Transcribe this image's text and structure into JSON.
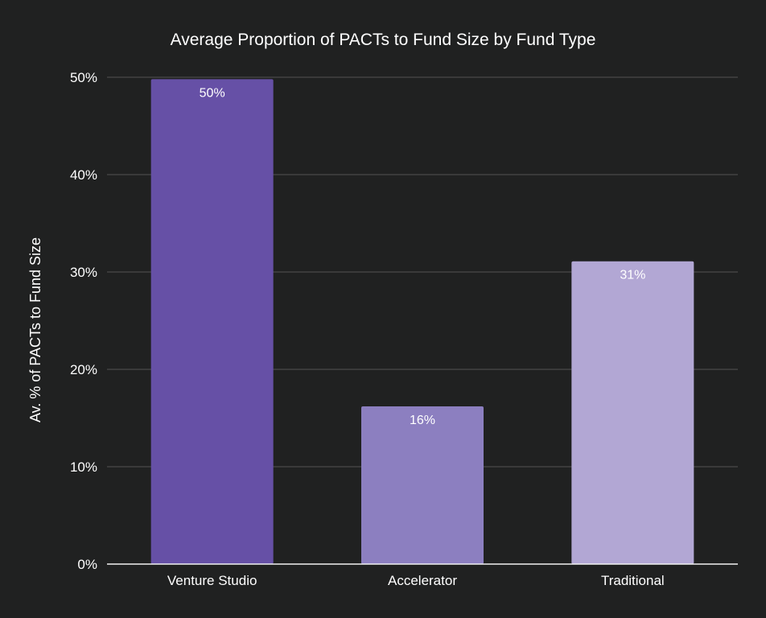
{
  "chart_data": {
    "type": "bar",
    "title": "Average Proportion of PACTs to Fund Size by Fund Type",
    "xlabel": "",
    "ylabel": "Av. % of PACTs to Fund Size",
    "categories": [
      "Venture Studio",
      "Accelerator",
      "Traditional"
    ],
    "values": [
      49.8,
      16.2,
      31.1
    ],
    "data_labels": [
      "50%",
      "16%",
      "31%"
    ],
    "colors": [
      "#6650a6",
      "#8c7fc0",
      "#b2a7d4"
    ],
    "ylim": [
      0,
      50
    ],
    "yticks": [
      0,
      10,
      20,
      30,
      40,
      50
    ],
    "ytick_labels": [
      "0%",
      "10%",
      "20%",
      "30%",
      "40%",
      "50%"
    ],
    "grid": true,
    "legend": "none"
  },
  "colors": {
    "background": "#202121",
    "text": "#ffffff",
    "grid": "#4a4a4a",
    "baseline": "#f2f2f2"
  }
}
